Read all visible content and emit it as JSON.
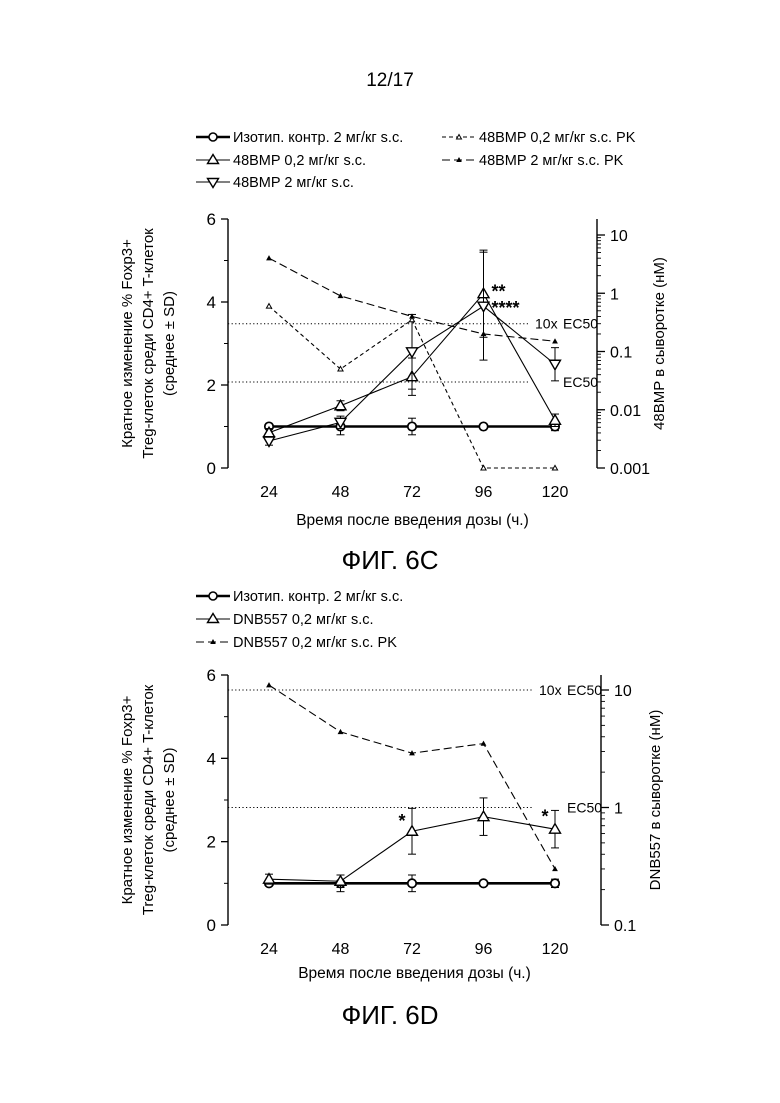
{
  "page_number": "12/17",
  "figures": [
    {
      "id": "fig-6c",
      "label": "ФИГ. 6C",
      "legend": [
        {
          "text": "Изотип. контр. 2 мг/кг s.c.",
          "marker": "circle-open",
          "line": "solid-thick"
        },
        {
          "text": "48BMP 0,2 мг/кг s.c. PK",
          "marker": "triangle-small",
          "line": "dashed"
        },
        {
          "text": "48BMP 0,2 мг/кг s.c.",
          "marker": "triangle-up-open",
          "line": "solid"
        },
        {
          "text": "48BMP 2 мг/кг s.c. PK",
          "marker": "triangle-small-filled",
          "line": "dashed-long"
        },
        {
          "text": "48BMP 2 мг/кг s.c.",
          "marker": "triangle-down-open",
          "line": "solid"
        }
      ]
    },
    {
      "id": "fig-6d",
      "label": "ФИГ. 6D",
      "legend": [
        {
          "text": "Изотип. контр. 2 мг/кг s.c.",
          "marker": "circle-open",
          "line": "solid-thick"
        },
        {
          "text": "DNB557 0,2 мг/кг s.c.",
          "marker": "triangle-up-open",
          "line": "solid"
        },
        {
          "text": "DNB557 0,2 мг/кг s.c. PK",
          "marker": "triangle-small-filled",
          "line": "dashed-long"
        }
      ]
    }
  ],
  "chart_data": [
    {
      "type": "line",
      "xlabel": "Время после введения дозы (ч.)",
      "ylabel_lines": [
        "Кратное изменение % Foxp3+",
        "Treg-клеток среди CD4+ T-клеток",
        "(среднее ± SD)"
      ],
      "y2label": "48BMP в сыворотке (нМ)",
      "x": [
        24,
        48,
        72,
        96,
        120
      ],
      "xticks": [
        "24",
        "48",
        "72",
        "96",
        "120"
      ],
      "ylim": [
        0,
        6
      ],
      "yticks": [
        "0",
        "2",
        "4",
        "6"
      ],
      "y2_scale": "log",
      "y2lim": [
        0.001,
        20
      ],
      "y2ticks": [
        {
          "value": 0.001,
          "label": "0.001"
        },
        {
          "value": 0.01,
          "label": "0.01"
        },
        {
          "value": 0.1,
          "label": "0.1"
        },
        {
          "value": 1,
          "label": "1"
        },
        {
          "value": 10,
          "label": "10"
        }
      ],
      "reference_lines": [
        {
          "label": "EC50",
          "prefix": "",
          "y2": 0.03
        },
        {
          "label": "EC50",
          "prefix": "10x",
          "y2": 0.3
        }
      ],
      "series": [
        {
          "name": "Изотип. контр. 2 мг/кг s.c.",
          "axis": "left",
          "marker": "circle-open",
          "line": "solid-thick",
          "values": [
            1.0,
            1.0,
            1.0,
            1.0,
            1.0
          ],
          "err": [
            0.05,
            0.2,
            0.2,
            0.05,
            0.1
          ]
        },
        {
          "name": "48BMP 0,2 мг/кг s.c.",
          "axis": "left",
          "marker": "triangle-up-open",
          "line": "solid",
          "values": [
            0.85,
            1.5,
            2.2,
            4.2,
            1.15
          ],
          "err": [
            0.1,
            0.12,
            0.45,
            1.05,
            0.15
          ]
        },
        {
          "name": "48BMP 2 мг/кг s.c.",
          "axis": "left",
          "marker": "triangle-down-open",
          "line": "solid",
          "values": [
            0.65,
            1.1,
            2.8,
            3.9,
            2.5
          ],
          "err": [
            0.1,
            0.15,
            0.9,
            1.3,
            0.4
          ]
        },
        {
          "name": "48BMP 0,2 мг/кг s.c. PK",
          "axis": "right",
          "marker": "triangle-small",
          "line": "dashed",
          "values": [
            0.6,
            0.05,
            0.35,
            0.001,
            0.001
          ]
        },
        {
          "name": "48BMP 2 мг/кг s.c. PK",
          "axis": "right",
          "marker": "triangle-small-filled",
          "line": "dashed-long",
          "values": [
            4.0,
            0.9,
            0.4,
            0.2,
            0.15
          ]
        }
      ],
      "annotations": [
        {
          "text": "**",
          "x": 96,
          "y": 4.3
        },
        {
          "text": "****",
          "x": 96,
          "y": 3.85
        }
      ]
    },
    {
      "type": "line",
      "xlabel": "Время после введения дозы (ч.)",
      "ylabel_lines": [
        "Кратное изменение % Foxp3+",
        "Treg-клеток среди CD4+ T-клеток",
        "(среднее ± SD)"
      ],
      "y2label": "DNB557 в сыворотке (нМ)",
      "x": [
        24,
        48,
        72,
        96,
        120
      ],
      "xticks": [
        "24",
        "48",
        "72",
        "96",
        "120"
      ],
      "ylim": [
        0,
        6
      ],
      "yticks": [
        "0",
        "2",
        "4",
        "6"
      ],
      "y2_scale": "log",
      "y2lim": [
        0.1,
        50
      ],
      "y2ticks": [
        {
          "value": 0.1,
          "label": "0.1"
        },
        {
          "value": 1,
          "label": "1"
        },
        {
          "value": 10,
          "label": "10"
        }
      ],
      "reference_lines": [
        {
          "label": "EC50",
          "prefix": "",
          "y2": 1
        },
        {
          "label": "EC50",
          "prefix": "10x",
          "y2": 10
        }
      ],
      "series": [
        {
          "name": "Изотип. контр. 2 мг/кг s.c.",
          "axis": "left",
          "marker": "circle-open",
          "line": "solid-thick",
          "values": [
            1.0,
            1.0,
            1.0,
            1.0,
            1.0
          ],
          "err": [
            0.05,
            0.2,
            0.2,
            0.05,
            0.1
          ]
        },
        {
          "name": "DNB557 0,2 мг/кг s.c.",
          "axis": "left",
          "marker": "triangle-up-open",
          "line": "solid",
          "values": [
            1.1,
            1.05,
            2.25,
            2.6,
            2.3
          ],
          "err": [
            0.12,
            0.15,
            0.55,
            0.45,
            0.45
          ]
        },
        {
          "name": "DNB557 0,2 мг/кг s.c. PK",
          "axis": "right",
          "marker": "triangle-small-filled",
          "line": "dashed-long",
          "values": [
            11.0,
            4.4,
            2.9,
            3.5,
            0.3
          ]
        }
      ],
      "annotations": [
        {
          "text": "*",
          "x": 72,
          "y": 2.55
        },
        {
          "text": "*",
          "x": 120,
          "y": 2.65
        }
      ]
    }
  ]
}
